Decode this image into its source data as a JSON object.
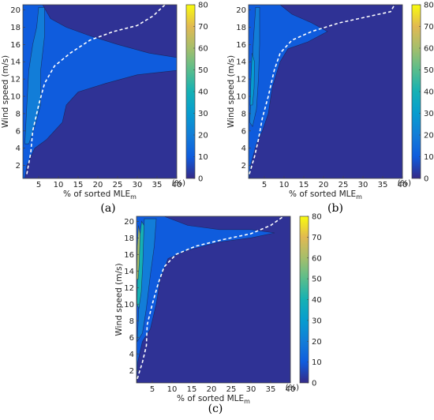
{
  "chart_data": [
    {
      "type": "heatmap",
      "panel": "a",
      "caption": "(a)",
      "xlabel": "% of sorted MLE",
      "xlabel_sub": "m",
      "ylabel": "Wind speed (m/s)",
      "xlim": [
        1,
        40
      ],
      "ylim": [
        0.5,
        20.6
      ],
      "xticks": [
        5,
        10,
        15,
        20,
        25,
        30,
        35,
        40
      ],
      "yticks": [
        2,
        4,
        6,
        8,
        10,
        12,
        14,
        16,
        18,
        20
      ],
      "colorbar": {
        "min": 0,
        "max": 80,
        "ticks": [
          0,
          10,
          20,
          30,
          40,
          50,
          60,
          70,
          80
        ],
        "unit": "(%)"
      },
      "dashed_curve": [
        [
          2,
          1
        ],
        [
          3,
          3.5
        ],
        [
          3.5,
          6
        ],
        [
          5,
          9
        ],
        [
          6.5,
          11.5
        ],
        [
          9,
          13.5
        ],
        [
          13,
          15
        ],
        [
          18,
          16.5
        ],
        [
          24,
          17.5
        ],
        [
          30,
          18.2
        ],
        [
          34,
          19.3
        ],
        [
          37,
          20.6
        ]
      ],
      "contours": [
        {
          "level": 10,
          "path": [
            [
              1,
              0.5
            ],
            [
              1,
              20.6
            ],
            [
              6,
              20.6
            ],
            [
              8,
              19
            ],
            [
              12,
              18
            ],
            [
              18,
              17
            ],
            [
              25,
              16
            ],
            [
              33,
              15
            ],
            [
              40,
              14.5
            ],
            [
              40,
              13
            ],
            [
              30,
              12.5
            ],
            [
              22,
              11.5
            ],
            [
              15,
              10.5
            ],
            [
              12,
              9
            ],
            [
              11,
              7
            ],
            [
              9,
              6
            ],
            [
              7,
              5
            ],
            [
              4,
              4
            ],
            [
              2,
              2
            ],
            [
              1.5,
              0.5
            ]
          ]
        },
        {
          "level": 20,
          "path": [
            [
              1.5,
              4.5
            ],
            [
              2,
              9
            ],
            [
              2.5,
              13
            ],
            [
              3.5,
              16
            ],
            [
              4.5,
              18
            ],
            [
              5,
              20.3
            ],
            [
              6.5,
              20.3
            ],
            [
              6.5,
              17
            ],
            [
              5.5,
              13
            ],
            [
              5.5,
              9
            ],
            [
              4,
              6.5
            ],
            [
              2.5,
              4.5
            ]
          ]
        }
      ]
    },
    {
      "type": "heatmap",
      "panel": "b",
      "caption": "(b)",
      "xlabel": "% of sorted MLE",
      "xlabel_sub": "m",
      "ylabel": "Wind speed (m/s)",
      "xlim": [
        1,
        40
      ],
      "ylim": [
        0.5,
        20.6
      ],
      "xticks": [
        5,
        10,
        15,
        20,
        25,
        30,
        35,
        40
      ],
      "yticks": [
        2,
        4,
        6,
        8,
        10,
        12,
        14,
        16,
        18,
        20
      ],
      "colorbar": {
        "min": 0,
        "max": 80,
        "ticks": [
          0,
          10,
          20,
          30,
          40,
          50,
          60,
          70,
          80
        ],
        "unit": "(%)"
      },
      "dashed_curve": [
        [
          1.2,
          1
        ],
        [
          2.5,
          3
        ],
        [
          3.5,
          5
        ],
        [
          4.5,
          7.5
        ],
        [
          6,
          10
        ],
        [
          7.5,
          13
        ],
        [
          9,
          15
        ],
        [
          12,
          16.5
        ],
        [
          17,
          17.5
        ],
        [
          24,
          18.5
        ],
        [
          32,
          19.3
        ],
        [
          37,
          19.8
        ],
        [
          38,
          20.6
        ]
      ],
      "contours": [
        {
          "level": 10,
          "path": [
            [
              1,
              0.5
            ],
            [
              1,
              20.6
            ],
            [
              9,
              20.6
            ],
            [
              12,
              19.5
            ],
            [
              17,
              18.5
            ],
            [
              21,
              17.5
            ],
            [
              16,
              16.3
            ],
            [
              11,
              15.5
            ],
            [
              9,
              14
            ],
            [
              7,
              11
            ],
            [
              6,
              8
            ],
            [
              4.5,
              6
            ],
            [
              3,
              4.5
            ],
            [
              1.5,
              2
            ],
            [
              1.2,
              0.5
            ]
          ]
        },
        {
          "level": 20,
          "path": [
            [
              1.3,
              7
            ],
            [
              1.6,
              10
            ],
            [
              1.8,
              13
            ],
            [
              2.3,
              17
            ],
            [
              2.8,
              20.3
            ],
            [
              3.8,
              20.3
            ],
            [
              3.8,
              16
            ],
            [
              3.5,
              12
            ],
            [
              3,
              8.5
            ],
            [
              2,
              6.5
            ]
          ]
        },
        {
          "level": 30,
          "path": [
            [
              1.4,
              9
            ],
            [
              1.6,
              12
            ],
            [
              1.9,
              15
            ],
            [
              2.5,
              14
            ],
            [
              2.4,
              11
            ],
            [
              2,
              9
            ]
          ]
        }
      ]
    },
    {
      "type": "heatmap",
      "panel": "c",
      "caption": "(c)",
      "xlabel": "% of sorted MLE",
      "xlabel_sub": "m",
      "ylabel": "Wind speed (m/s)",
      "xlim": [
        1,
        40
      ],
      "ylim": [
        0.5,
        20.6
      ],
      "xticks": [
        5,
        10,
        15,
        20,
        25,
        30,
        35,
        40
      ],
      "yticks": [
        2,
        4,
        6,
        8,
        10,
        12,
        14,
        16,
        18,
        20
      ],
      "colorbar": {
        "min": 0,
        "max": 80,
        "ticks": [
          0,
          10,
          20,
          30,
          40,
          50,
          60,
          70,
          80
        ],
        "unit": "(%)"
      },
      "dashed_curve": [
        [
          1.2,
          1
        ],
        [
          2.5,
          3
        ],
        [
          3.5,
          5
        ],
        [
          3.7,
          7.5
        ],
        [
          5,
          10
        ],
        [
          6.5,
          12.5
        ],
        [
          8,
          14.5
        ],
        [
          11,
          16
        ],
        [
          16,
          17
        ],
        [
          23,
          17.8
        ],
        [
          30,
          18.5
        ],
        [
          35,
          19.5
        ],
        [
          38,
          20.5
        ]
      ],
      "contours": [
        {
          "level": 10,
          "path": [
            [
              1,
              0.5
            ],
            [
              1,
              20.6
            ],
            [
              8,
              20.6
            ],
            [
              14,
              19.5
            ],
            [
              22,
              19
            ],
            [
              30,
              19
            ],
            [
              36,
              18.6
            ],
            [
              30,
              18
            ],
            [
              22,
              17.5
            ],
            [
              14,
              16.5
            ],
            [
              9,
              15.5
            ],
            [
              7,
              13
            ],
            [
              6,
              10
            ],
            [
              4.5,
              7
            ],
            [
              2.5,
              5.5
            ],
            [
              1.3,
              3
            ],
            [
              1.1,
              0.5
            ]
          ]
        },
        {
          "level": 20,
          "path": [
            [
              1.2,
              5.5
            ],
            [
              1.6,
              10
            ],
            [
              2,
              14
            ],
            [
              2.5,
              17.5
            ],
            [
              3,
              20.3
            ],
            [
              6,
              20.3
            ],
            [
              5.5,
              17
            ],
            [
              4.5,
              13.5
            ],
            [
              3.5,
              9.5
            ],
            [
              2.5,
              6.5
            ]
          ]
        },
        {
          "level": 40,
          "path": [
            [
              1.1,
              10
            ],
            [
              1.3,
              15
            ],
            [
              1.8,
              18
            ],
            [
              2.3,
              20
            ],
            [
              2.9,
              19.5
            ],
            [
              2.6,
              15
            ],
            [
              2.2,
              11.5
            ],
            [
              1.6,
              9.5
            ]
          ]
        },
        {
          "level": 60,
          "path": [
            [
              1.05,
              13
            ],
            [
              1.2,
              17
            ],
            [
              1.5,
              19.5
            ],
            [
              1.9,
              18.5
            ],
            [
              1.7,
              15
            ],
            [
              1.4,
              13
            ]
          ]
        }
      ]
    }
  ]
}
